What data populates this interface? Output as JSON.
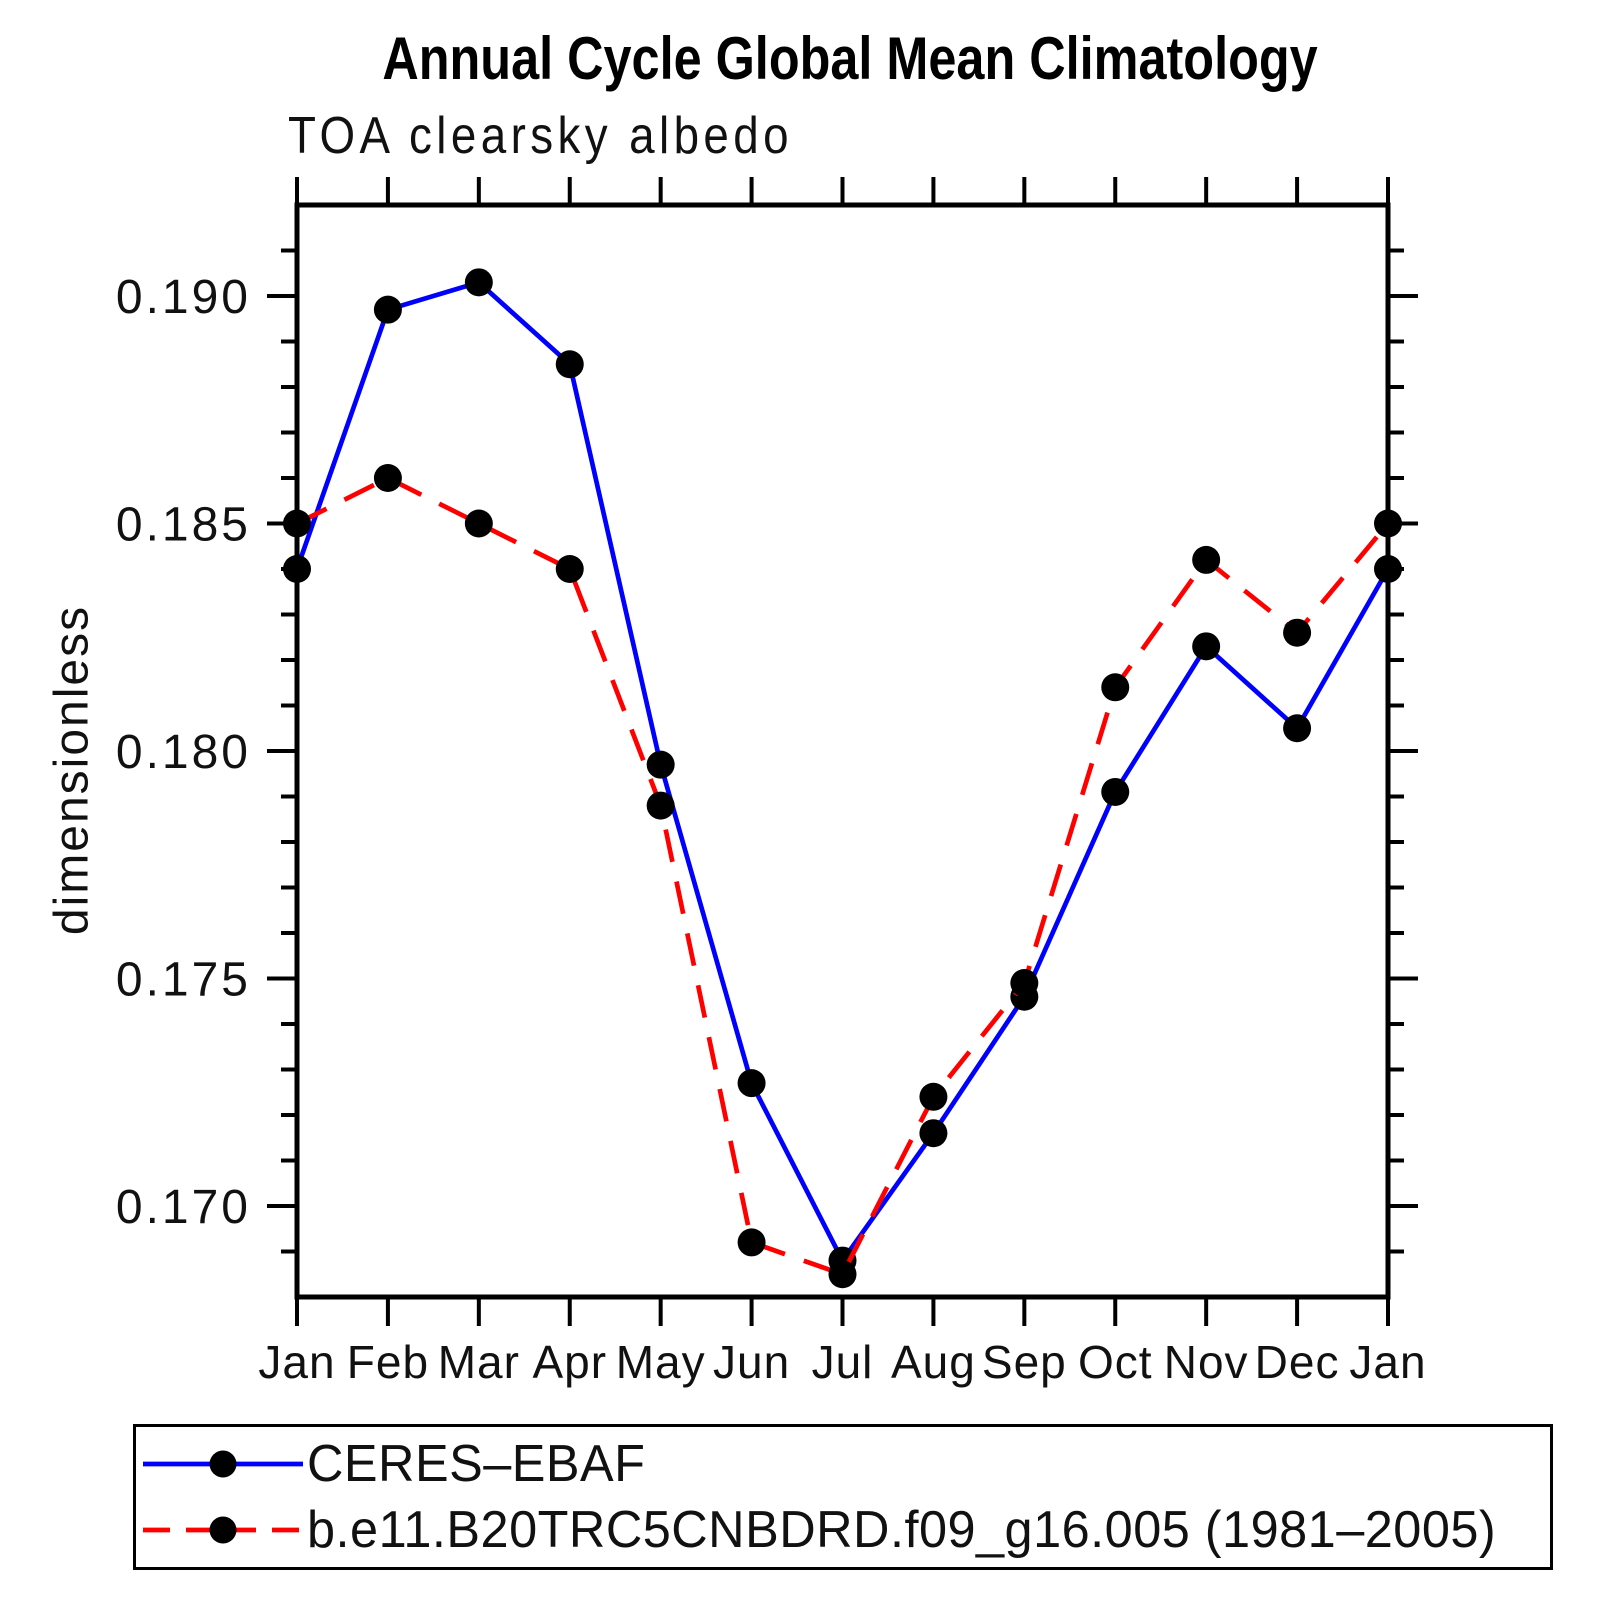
{
  "title": "Annual Cycle Global Mean Climatology",
  "subtitle": "TOA clearsky albedo",
  "chart_data": {
    "type": "line",
    "x_categories": [
      "Jan",
      "Feb",
      "Mar",
      "Apr",
      "May",
      "Jun",
      "Jul",
      "Aug",
      "Sep",
      "Oct",
      "Nov",
      "Dec",
      "Jan"
    ],
    "ylabel": "dimensionless",
    "ylim": [
      0.168,
      0.192
    ],
    "y_major_ticks": [
      0.17,
      0.175,
      0.18,
      0.185,
      0.19
    ],
    "y_major_tick_labels": [
      "0.170",
      "0.175",
      "0.180",
      "0.185",
      "0.190"
    ],
    "y_minor_tick_step": 0.001,
    "grid": false,
    "legend_position": "bottom-left",
    "axis_color": "#000000",
    "series": [
      {
        "name": "CERES–EBAF",
        "color": "#0000ff",
        "line_style": "solid",
        "marker": "circle",
        "marker_color": "#000000",
        "values": [
          0.184,
          0.1897,
          0.1903,
          0.1885,
          0.1797,
          0.1727,
          0.1688,
          0.1716,
          0.1746,
          0.1791,
          0.1823,
          0.1805,
          0.184
        ]
      },
      {
        "name": "b.e11.B20TRC5CNBDRD.f09_g16.005 (1981–2005)",
        "color": "#ff0000",
        "line_style": "dashed",
        "marker": "circle",
        "marker_color": "#000000",
        "values": [
          0.185,
          0.186,
          0.185,
          0.184,
          0.1788,
          0.1692,
          0.1685,
          0.1724,
          0.1749,
          0.1814,
          0.1842,
          0.1826,
          0.185
        ]
      }
    ]
  }
}
